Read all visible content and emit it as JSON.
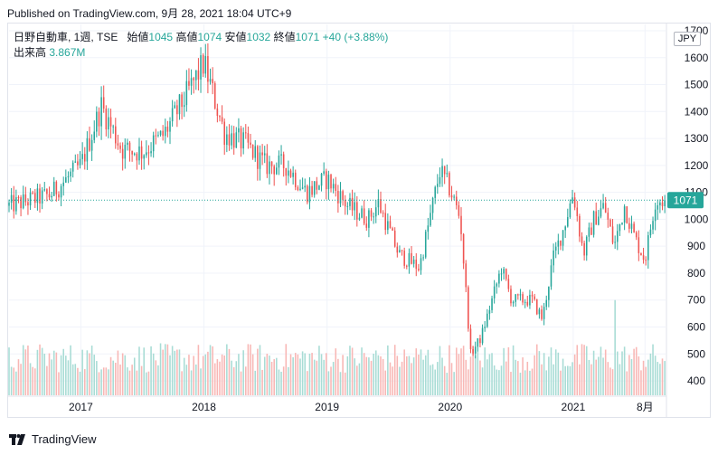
{
  "header": {
    "published": "Published on TradingView.com, 9月 28, 2021 18:04 UTC+9"
  },
  "legend": {
    "symbol": "日野自動車, 1週, TSE",
    "open_label": "始値",
    "open_value": "1045",
    "high_label": "高値",
    "high_value": "1074",
    "low_label": "安値",
    "low_value": "1032",
    "close_label": "終値",
    "close_value": "1071",
    "change": "+40 (+3.88%)",
    "volume_label": "出来高",
    "volume_value": "3.867M"
  },
  "currency_badge": "JPY",
  "footer": {
    "brand": "TradingView"
  },
  "colors": {
    "up": "#26a69a",
    "down": "#ef5350",
    "volume_up": "#a8dcd5",
    "volume_down": "#f8b7b5",
    "grid": "#f0f3fa",
    "axis_text": "#131722"
  },
  "chart_data": {
    "type": "candlestick",
    "timeframe": "1週",
    "y_ticks": [
      400,
      500,
      600,
      700,
      800,
      900,
      1000,
      1100,
      1200,
      1300,
      1400,
      1500,
      1600,
      1700
    ],
    "ylim": [
      370,
      1710
    ],
    "x_ticks": [
      {
        "label": "2017",
        "date": "2017-01"
      },
      {
        "label": "2018",
        "date": "2018-01"
      },
      {
        "label": "2019",
        "date": "2019-01"
      },
      {
        "label": "2020",
        "date": "2020-01"
      },
      {
        "label": "2021",
        "date": "2021-01"
      },
      {
        "label": "8月",
        "date": "2021-08"
      }
    ],
    "last_price": 1071,
    "grid": true,
    "volume_shown": true,
    "price_path": [
      [
        "2016-06",
        1050
      ],
      [
        "2016-10",
        1090
      ],
      [
        "2017-01",
        1200
      ],
      [
        "2017-03",
        1420
      ],
      [
        "2017-05",
        1260
      ],
      [
        "2017-07",
        1250
      ],
      [
        "2017-09",
        1310
      ],
      [
        "2017-11",
        1440
      ],
      [
        "2018-01",
        1580
      ],
      [
        "2018-03",
        1320
      ],
      [
        "2018-05",
        1280
      ],
      [
        "2018-07",
        1200
      ],
      [
        "2018-09",
        1200
      ],
      [
        "2018-11",
        1100
      ],
      [
        "2019-01",
        1150
      ],
      [
        "2019-03",
        1050
      ],
      [
        "2019-05",
        1000
      ],
      [
        "2019-06",
        1060
      ],
      [
        "2019-08",
        870
      ],
      [
        "2019-10",
        820
      ],
      [
        "2019-11",
        1000
      ],
      [
        "2019-12",
        1180
      ],
      [
        "2020-01",
        1110
      ],
      [
        "2020-02",
        1000
      ],
      [
        "2020-03",
        500
      ],
      [
        "2020-04",
        560
      ],
      [
        "2020-06",
        820
      ],
      [
        "2020-07",
        700
      ],
      [
        "2020-09",
        700
      ],
      [
        "2020-10",
        630
      ],
      [
        "2020-11",
        850
      ],
      [
        "2020-12",
        960
      ],
      [
        "2021-01",
        1100
      ],
      [
        "2021-02",
        870
      ],
      [
        "2021-03",
        1000
      ],
      [
        "2021-04",
        1050
      ],
      [
        "2021-05",
        900
      ],
      [
        "2021-06",
        1050
      ],
      [
        "2021-07",
        930
      ],
      [
        "2021-08",
        850
      ],
      [
        "2021-09",
        1071
      ]
    ],
    "volume_spike": {
      "date": "2021-05",
      "value": 700
    }
  }
}
